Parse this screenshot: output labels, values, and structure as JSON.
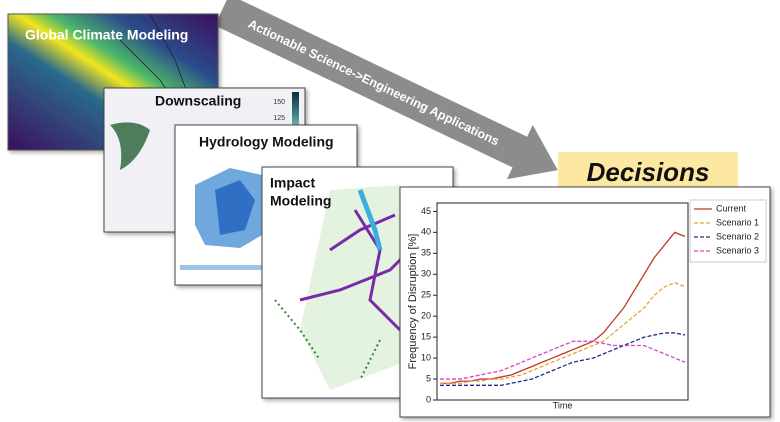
{
  "arrow": {
    "label": "Actionable Science->Engineering Applications"
  },
  "panels": [
    {
      "title": "Global Climate Modeling"
    },
    {
      "title": "Downscaling",
      "colorbar_ticks": [
        150,
        125
      ]
    },
    {
      "title": "Hydrology Modeling"
    },
    {
      "title_lines": [
        "Impact",
        "Modeling"
      ]
    }
  ],
  "decision": {
    "label": "Decisions"
  },
  "chart": {
    "type": "line",
    "xlabel": "Time",
    "ylabel": "Frequency of Disruption [%]",
    "ylim": [
      0,
      47
    ],
    "yticks": [
      0,
      5,
      10,
      15,
      20,
      25,
      30,
      35,
      40,
      45
    ],
    "legend": "upper right",
    "series": [
      {
        "name": "Current",
        "color": "#c0392b",
        "dash": false,
        "values": [
          4,
          4,
          4.5,
          4.5,
          5,
          5,
          5.5,
          6,
          7,
          8,
          9,
          10,
          11,
          12,
          13,
          14,
          16,
          19,
          22,
          26,
          30,
          34,
          37,
          40,
          39
        ]
      },
      {
        "name": "Scenario 1",
        "color": "#e8a33a",
        "dash": true,
        "values": [
          4,
          4,
          4,
          4.5,
          4.5,
          5,
          5,
          5.5,
          6,
          7,
          8,
          9,
          10,
          11,
          12,
          13,
          14,
          16,
          18,
          20,
          22,
          25,
          27,
          28,
          27
        ]
      },
      {
        "name": "Scenario 2",
        "color": "#1f2a8a",
        "dash": true,
        "values": [
          3.5,
          3.5,
          3.5,
          3.5,
          3.5,
          3.5,
          3.5,
          4,
          4.5,
          5,
          6,
          7,
          8,
          9,
          9.5,
          10,
          11,
          12,
          13,
          14,
          15,
          15.5,
          16,
          16,
          15.5
        ]
      },
      {
        "name": "Scenario 3",
        "color": "#e040c8",
        "dash": true,
        "values": [
          5,
          5,
          5,
          5.5,
          6,
          6.5,
          7,
          8,
          9,
          10,
          11,
          12,
          13,
          14,
          14,
          14,
          13.5,
          13,
          13,
          13,
          13,
          12,
          11,
          10,
          9
        ]
      }
    ]
  }
}
